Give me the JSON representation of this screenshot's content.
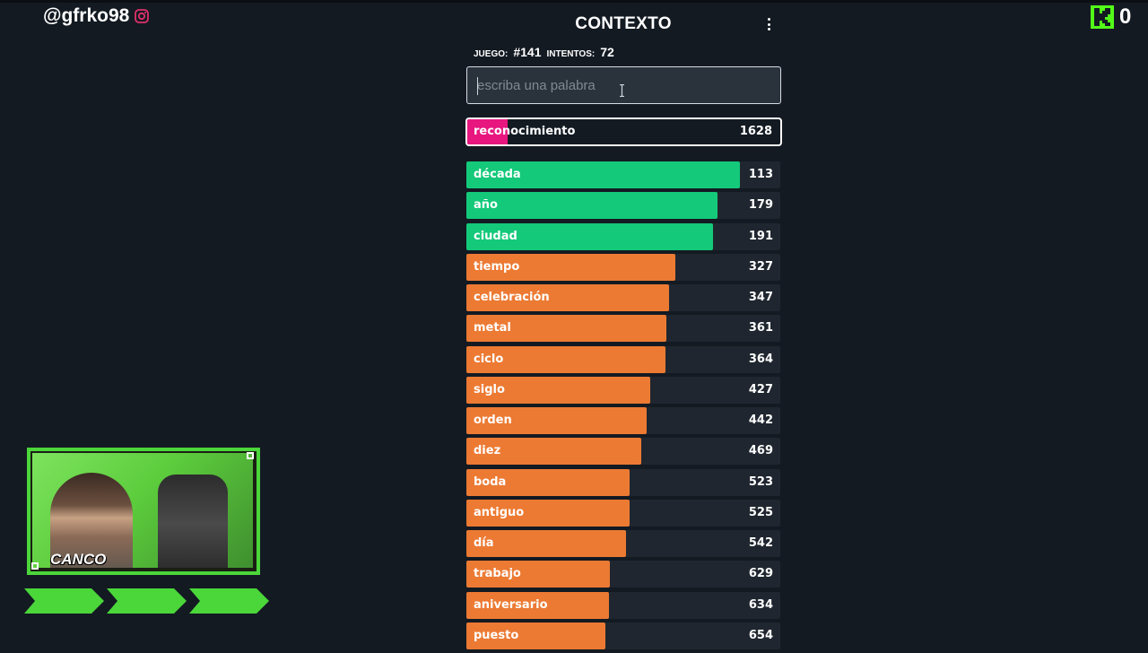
{
  "overlay": {
    "handle": "@gfrko98",
    "handle_icon": "instagram-icon",
    "kick_count": "0",
    "kick_icon": "kick-logo-icon",
    "cam_name": "CANCO"
  },
  "game": {
    "title": "CONTEXTO",
    "juego_label": "JUEGO:",
    "juego_value": "#141",
    "intentos_label": "INTENTOS:",
    "intentos_value": "72",
    "search_placeholder": "escriba una palabra",
    "current_guess": {
      "word": "reconocimiento",
      "rank": "1628",
      "fill_fraction": 0.13
    },
    "guesses": [
      {
        "word": "década",
        "rank": "113",
        "fill_fraction": 0.87,
        "color": "#14c97a"
      },
      {
        "word": "año",
        "rank": "179",
        "fill_fraction": 0.8,
        "color": "#14c97a"
      },
      {
        "word": "ciudad",
        "rank": "191",
        "fill_fraction": 0.787,
        "color": "#14c97a"
      },
      {
        "word": "tiempo",
        "rank": "327",
        "fill_fraction": 0.665,
        "color": "#ec7a33"
      },
      {
        "word": "celebración",
        "rank": "347",
        "fill_fraction": 0.647,
        "color": "#ec7a33"
      },
      {
        "word": "metal",
        "rank": "361",
        "fill_fraction": 0.636,
        "color": "#ec7a33"
      },
      {
        "word": "ciclo",
        "rank": "364",
        "fill_fraction": 0.634,
        "color": "#ec7a33"
      },
      {
        "word": "siglo",
        "rank": "427",
        "fill_fraction": 0.587,
        "color": "#ec7a33"
      },
      {
        "word": "orden",
        "rank": "442",
        "fill_fraction": 0.575,
        "color": "#ec7a33"
      },
      {
        "word": "diez",
        "rank": "469",
        "fill_fraction": 0.557,
        "color": "#ec7a33"
      },
      {
        "word": "boda",
        "rank": "523",
        "fill_fraction": 0.521,
        "color": "#ec7a33"
      },
      {
        "word": "antiguo",
        "rank": "525",
        "fill_fraction": 0.519,
        "color": "#ec7a33"
      },
      {
        "word": "día",
        "rank": "542",
        "fill_fraction": 0.509,
        "color": "#ec7a33"
      },
      {
        "word": "trabajo",
        "rank": "629",
        "fill_fraction": 0.458,
        "color": "#ec7a33"
      },
      {
        "word": "aniversario",
        "rank": "634",
        "fill_fraction": 0.455,
        "color": "#ec7a33"
      },
      {
        "word": "puesto",
        "rank": "654",
        "fill_fraction": 0.444,
        "color": "#ec7a33"
      }
    ]
  },
  "colors": {
    "background": "#131a22",
    "current_fill": "#e8167f",
    "close_green": "#14c97a",
    "mid_orange": "#ec7a33",
    "overlay_green": "#4bd63a"
  }
}
